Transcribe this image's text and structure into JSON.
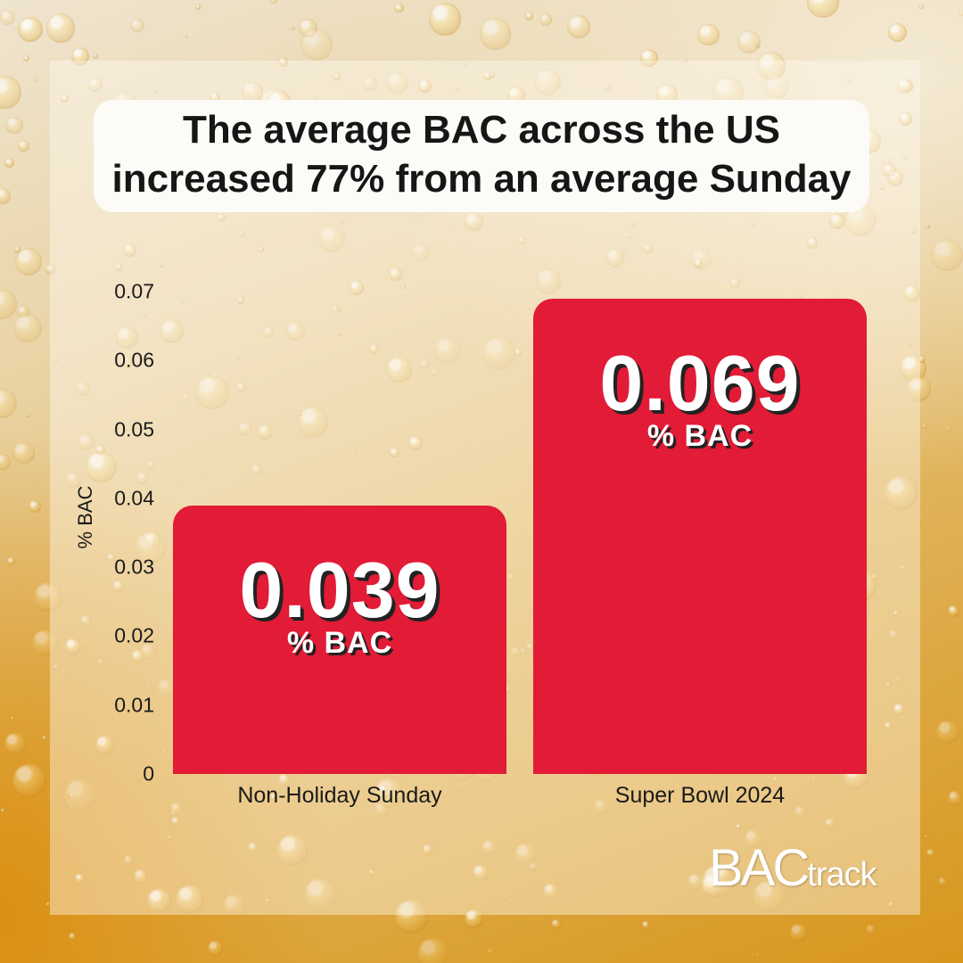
{
  "title": {
    "line1": "The average BAC across the US",
    "line2": "increased 77% from an average Sunday"
  },
  "logo": {
    "part1": "BAC",
    "part2": "track"
  },
  "colors": {
    "bar": "#e21b36",
    "value_text": "#ffffff",
    "panel": "#fdfbf7"
  },
  "chart_data": {
    "type": "bar",
    "title": "The average BAC across the US increased 77% from an average Sunday",
    "categories": [
      "Non-Holiday Sunday",
      "Super Bowl 2024"
    ],
    "values": [
      0.039,
      0.069
    ],
    "value_labels": [
      "0.039",
      "0.069"
    ],
    "value_unit": "% BAC",
    "xlabel": "",
    "ylabel": "% BAC",
    "ylim": [
      0,
      0.07
    ],
    "yticks": [
      "0",
      "0.01",
      "0.02",
      "0.03",
      "0.04",
      "0.05",
      "0.06",
      "0.07"
    ],
    "grid": false,
    "legend": "none"
  }
}
